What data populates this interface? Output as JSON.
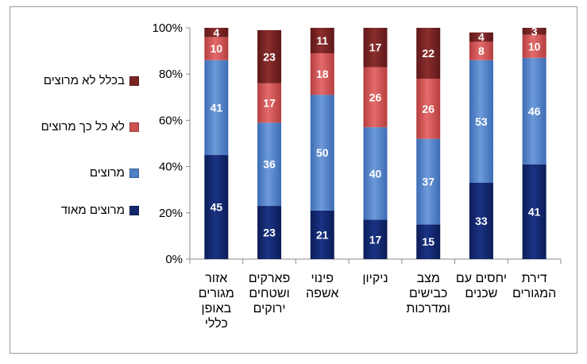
{
  "chart_data": {
    "type": "bar",
    "stacked": true,
    "percent": true,
    "ylim": [
      0,
      100
    ],
    "y_ticks": [
      "0%",
      "20%",
      "40%",
      "60%",
      "80%",
      "100%"
    ],
    "categories": [
      [
        "אזור",
        "מגורים",
        "באופן",
        "כללי"
      ],
      [
        "פארקים",
        "ושטחים",
        "ירוקים"
      ],
      [
        "פינוי",
        "אשפה"
      ],
      [
        "ניקיון"
      ],
      [
        "מצב",
        "כבישים",
        "ומדרכות"
      ],
      [
        "יחסים עם",
        "שכנים"
      ],
      [
        "דירת",
        "המגורים"
      ]
    ],
    "series": [
      {
        "name": "מרוצים מאוד",
        "color": "#13286e",
        "values": [
          45,
          23,
          21,
          17,
          15,
          33,
          41
        ]
      },
      {
        "name": "מרוצים",
        "color": "#4f80c8",
        "values": [
          41,
          36,
          50,
          40,
          37,
          53,
          46
        ]
      },
      {
        "name": "לא כל כך מרוצים",
        "color": "#cf5050",
        "values": [
          10,
          17,
          18,
          26,
          26,
          8,
          10
        ]
      },
      {
        "name": "בכלל לא מרוצים",
        "color": "#7a2424",
        "values": [
          4,
          23,
          11,
          17,
          22,
          4,
          3
        ]
      }
    ],
    "legend_position": "left",
    "grid": false
  }
}
